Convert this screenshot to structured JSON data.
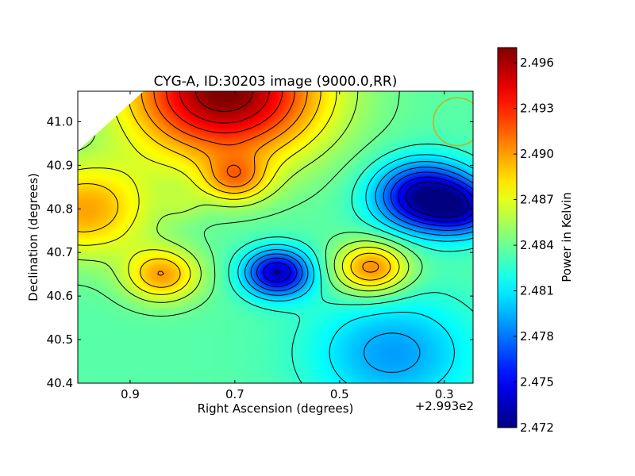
{
  "chart_data": {
    "type": "heatmap",
    "title": "CYG-A, ID:30203 image (9000.0,RR)",
    "xlabel": "Right Ascension (degrees)",
    "ylabel": "Declination (degrees)",
    "x_offset_label": "+2.993e2",
    "xlim": [
      1.0,
      0.245
    ],
    "ylim": [
      40.4,
      41.07
    ],
    "x_ticks": [
      0.9,
      0.7,
      0.5,
      0.3
    ],
    "x_tick_labels": [
      "0.9",
      "0.7",
      "0.5",
      "0.3"
    ],
    "y_ticks": [
      40.4,
      40.5,
      40.6,
      40.7,
      40.8,
      40.9,
      41.0
    ],
    "y_tick_labels": [
      "40.4",
      "40.5",
      "40.6",
      "40.7",
      "40.8",
      "40.9",
      "41.0"
    ],
    "colorbar": {
      "label": "Power in Kelvin",
      "range": [
        2.472,
        2.497
      ],
      "ticks": [
        2.472,
        2.475,
        2.478,
        2.481,
        2.484,
        2.487,
        2.49,
        2.493,
        2.496
      ],
      "tick_labels": [
        "2.472",
        "2.475",
        "2.478",
        "2.481",
        "2.484",
        "2.487",
        "2.490",
        "2.493",
        "2.496"
      ]
    },
    "colormap": "jet",
    "contours": true,
    "features": [
      {
        "kind": "max",
        "x": 0.72,
        "y": 41.07,
        "value": 2.4965
      },
      {
        "kind": "min",
        "x": 0.34,
        "y": 40.83,
        "value": 2.4725
      },
      {
        "kind": "min",
        "x": 0.62,
        "y": 40.655,
        "value": 2.4735
      },
      {
        "kind": "max",
        "x": 0.44,
        "y": 40.665,
        "value": 2.4905
      },
      {
        "kind": "max",
        "x": 0.99,
        "y": 40.8,
        "value": 2.4895
      },
      {
        "kind": "max",
        "x": 0.84,
        "y": 40.65,
        "value": 2.4895
      },
      {
        "kind": "min",
        "x": 0.8,
        "y": 40.81,
        "value": 2.4845
      },
      {
        "kind": "max",
        "x": 0.7,
        "y": 40.87,
        "value": 2.4885
      },
      {
        "kind": "min",
        "x": 0.26,
        "y": 40.8,
        "value": 2.4775
      },
      {
        "kind": "min",
        "x": 0.4,
        "y": 40.47,
        "value": 2.479
      }
    ],
    "beam_circle": {
      "x": 0.275,
      "y": 41.0,
      "radius_deg": 0.055,
      "color": "#bcb31c"
    }
  }
}
